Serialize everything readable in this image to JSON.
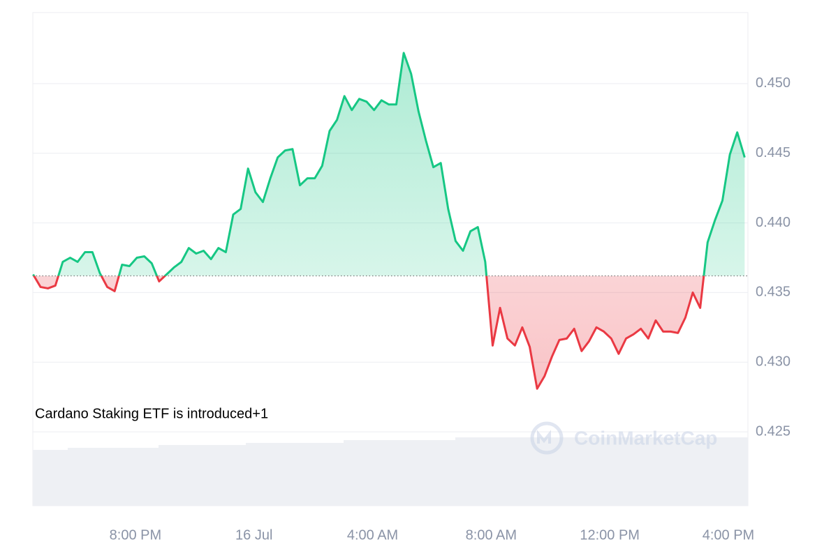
{
  "chart_data": {
    "type": "line",
    "annotation": "Cardano Staking ETF is introduced+1",
    "watermark": "CoinMarketCap",
    "color_up": "#16c784",
    "color_down": "#ea3943",
    "baseline": 0.4362,
    "grid": true,
    "xlim": [
      16.54,
      40.66
    ],
    "ylim": [
      0.4197,
      0.4551
    ],
    "xticks": [
      {
        "value": 20,
        "label": "8:00 PM"
      },
      {
        "value": 24,
        "label": "16 Jul"
      },
      {
        "value": 28,
        "label": "4:00 AM"
      },
      {
        "value": 32,
        "label": "8:00 AM"
      },
      {
        "value": 36,
        "label": "12:00 PM"
      },
      {
        "value": 40,
        "label": "4:00 PM"
      }
    ],
    "yticks": [
      {
        "value": 0.425,
        "label": "0.425"
      },
      {
        "value": 0.43,
        "label": "0.430"
      },
      {
        "value": 0.435,
        "label": "0.435"
      },
      {
        "value": 0.44,
        "label": "0.440"
      },
      {
        "value": 0.445,
        "label": "0.445"
      },
      {
        "value": 0.45,
        "label": "0.450"
      }
    ],
    "x": [
      16.55,
      16.8,
      17.05,
      17.3,
      17.55,
      17.8,
      18.05,
      18.3,
      18.55,
      18.8,
      19.05,
      19.3,
      19.55,
      19.8,
      20.05,
      20.3,
      20.55,
      20.8,
      21.05,
      21.3,
      21.55,
      21.8,
      22.05,
      22.3,
      22.55,
      22.8,
      23.05,
      23.3,
      23.55,
      23.8,
      24.05,
      24.3,
      24.55,
      24.8,
      25.05,
      25.3,
      25.55,
      25.8,
      26.05,
      26.3,
      26.55,
      26.8,
      27.05,
      27.3,
      27.55,
      27.8,
      28.05,
      28.3,
      28.55,
      28.8,
      29.05,
      29.3,
      29.55,
      29.8,
      30.05,
      30.3,
      30.55,
      30.8,
      31.05,
      31.3,
      31.55,
      31.8,
      32.05,
      32.3,
      32.55,
      32.8,
      33.05,
      33.3,
      33.55,
      33.8,
      34.05,
      34.3,
      34.55,
      34.8,
      35.05,
      35.3,
      35.55,
      35.8,
      36.05,
      36.3,
      36.55,
      36.8,
      37.05,
      37.3,
      37.55,
      37.8,
      38.05,
      38.3,
      38.55,
      38.8,
      39.05,
      39.3,
      39.55,
      39.8,
      40.05,
      40.3,
      40.55
    ],
    "values": [
      0.4363,
      0.4354,
      0.4353,
      0.4355,
      0.4372,
      0.4375,
      0.4372,
      0.4379,
      0.4379,
      0.4364,
      0.4354,
      0.4351,
      0.437,
      0.4369,
      0.4375,
      0.4376,
      0.4371,
      0.4358,
      0.4363,
      0.4368,
      0.4372,
      0.4382,
      0.4378,
      0.438,
      0.4374,
      0.4382,
      0.4379,
      0.4406,
      0.441,
      0.4439,
      0.4422,
      0.4415,
      0.4432,
      0.4447,
      0.4452,
      0.4453,
      0.4427,
      0.4432,
      0.4432,
      0.4441,
      0.4466,
      0.4474,
      0.4491,
      0.4481,
      0.4489,
      0.4487,
      0.4481,
      0.4488,
      0.4485,
      0.4485,
      0.4522,
      0.4507,
      0.448,
      0.4459,
      0.444,
      0.4443,
      0.441,
      0.4387,
      0.438,
      0.4394,
      0.4397,
      0.4372,
      0.4312,
      0.4339,
      0.4317,
      0.4312,
      0.4325,
      0.4311,
      0.4281,
      0.429,
      0.4304,
      0.4316,
      0.4317,
      0.4324,
      0.4308,
      0.4315,
      0.4325,
      0.4322,
      0.4317,
      0.4306,
      0.4317,
      0.432,
      0.4324,
      0.4317,
      0.433,
      0.4322,
      0.4322,
      0.4321,
      0.4332,
      0.435,
      0.4339,
      0.4386,
      0.4402,
      0.4416,
      0.4449,
      0.4465,
      0.4447
    ]
  }
}
